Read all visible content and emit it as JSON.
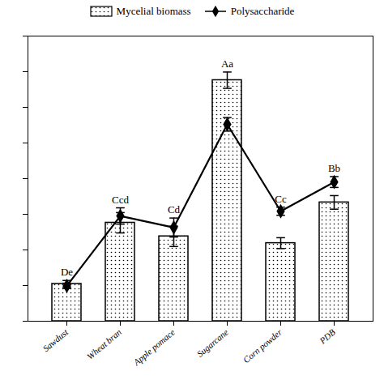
{
  "chart_data": {
    "type": "bar",
    "categories": [
      "Sawdust",
      "Wheat bran",
      "Apple pomace",
      "Sugarcane",
      "Corn powder",
      "PDB"
    ],
    "series": [
      {
        "name": "Mycelial biomass",
        "type": "bar",
        "color": "white",
        "values": [
          0.55,
          1.45,
          1.25,
          3.55,
          1.15,
          1.75
        ],
        "errors": [
          0.05,
          0.15,
          0.15,
          0.12,
          0.08,
          0.1
        ]
      },
      {
        "name": "Polysaccharide",
        "type": "line",
        "color": "black",
        "marker": "diamond",
        "values": [
          0.52,
          1.55,
          1.38,
          2.9,
          1.62,
          2.05
        ],
        "errors": [
          0.04,
          0.12,
          0.14,
          0.1,
          0.06,
          0.08
        ]
      }
    ],
    "annotations": [
      "De",
      "Ccd",
      "Cd",
      "Aa",
      "Cc",
      "Bb"
    ],
    "ylim": [
      0,
      4.2
    ],
    "yticks": [
      0,
      0.525,
      1.05,
      1.575,
      2.1,
      2.625,
      3.15,
      3.675,
      4.2
    ],
    "tick_labels": "x",
    "grid": false,
    "legend": "top"
  }
}
